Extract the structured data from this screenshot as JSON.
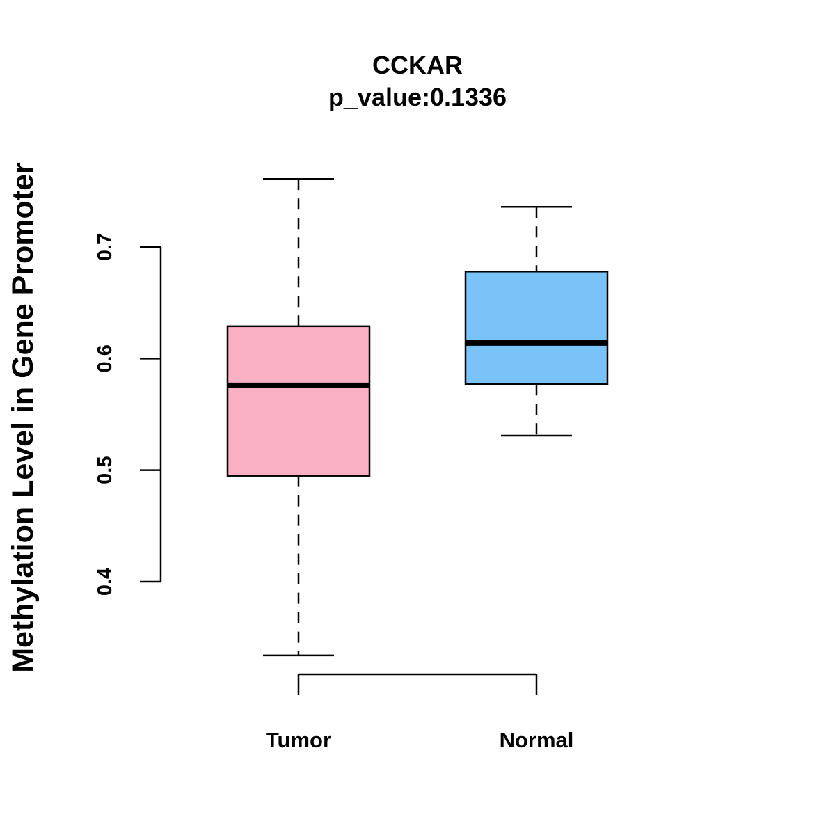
{
  "chart_data": {
    "type": "boxplot",
    "title": "CCKAR",
    "subtitle": "p_value:0.1336",
    "xlabel": "",
    "ylabel": "Methylation Level in Gene Promoter",
    "ylim": [
      0.4,
      0.7
    ],
    "yticks": [
      0.4,
      0.5,
      0.6,
      0.7
    ],
    "ytick_labels": [
      "0.4",
      "0.5",
      "0.6",
      "0.7"
    ],
    "categories": [
      "Tumor",
      "Normal"
    ],
    "series": [
      {
        "name": "Tumor",
        "whisker_low": 0.334,
        "q1": 0.495,
        "median": 0.576,
        "q3": 0.629,
        "whisker_high": 0.761,
        "color": "#FBB1C4"
      },
      {
        "name": "Normal",
        "whisker_low": 0.531,
        "q1": 0.577,
        "median": 0.614,
        "q3": 0.678,
        "whisker_high": 0.736,
        "color": "#79C3F8"
      }
    ],
    "grid": false,
    "legend": "none"
  }
}
